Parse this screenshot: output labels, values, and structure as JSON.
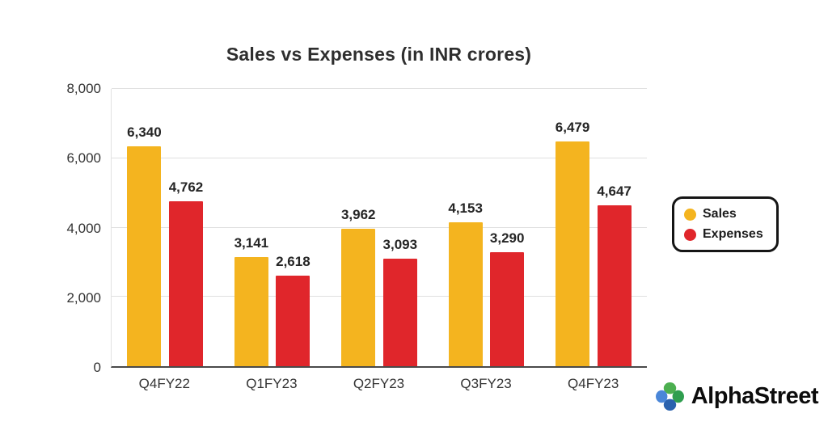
{
  "title": "Sales vs Expenses (in INR crores)",
  "chart_data": {
    "type": "bar",
    "categories": [
      "Q4FY22",
      "Q1FY23",
      "Q2FY23",
      "Q3FY23",
      "Q4FY23"
    ],
    "series": [
      {
        "name": "Sales",
        "color": "#F4B41F",
        "values": [
          6340,
          3141,
          3962,
          4153,
          6479
        ]
      },
      {
        "name": "Expenses",
        "color": "#E0262B",
        "values": [
          4762,
          2618,
          3093,
          3290,
          4647
        ]
      }
    ],
    "title": "Sales vs Expenses (in INR crores)",
    "xlabel": "",
    "ylabel": "",
    "ylim": [
      0,
      8000
    ],
    "yticks": [
      0,
      2000,
      4000,
      6000,
      8000
    ],
    "ytick_labels": [
      "0",
      "2,000",
      "4,000",
      "6,000",
      "8,000"
    ],
    "grid": true,
    "legend_position": "right",
    "value_labels": [
      [
        "6,340",
        "3,141",
        "3,962",
        "4,153",
        "6,479"
      ],
      [
        "4,762",
        "2,618",
        "3,093",
        "3,290",
        "4,647"
      ]
    ]
  },
  "legend": {
    "items": [
      {
        "label": "Sales",
        "color": "#F4B41F"
      },
      {
        "label": "Expenses",
        "color": "#E0262B"
      }
    ]
  },
  "branding": {
    "name": "AlphaStreet",
    "icon": "alphastreet-flower-icon",
    "icon_colors": {
      "blue_light": "#4A86D8",
      "blue_dark": "#2B62AE",
      "green_light": "#4CAF50",
      "green_dark": "#2F9E4F"
    }
  }
}
